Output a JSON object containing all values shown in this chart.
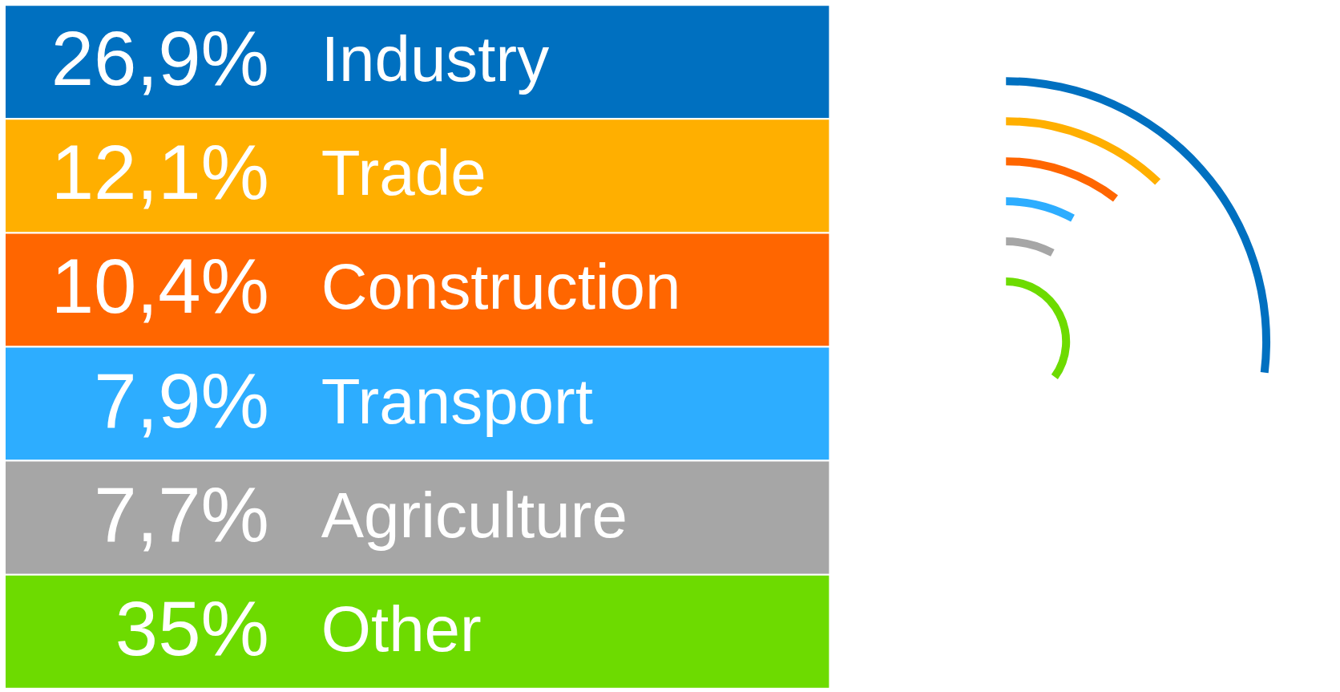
{
  "chart_data": {
    "type": "other",
    "categories": [
      "Industry",
      "Trade",
      "Construction",
      "Transport",
      "Agriculture",
      "Other"
    ],
    "values": [
      26.9,
      12.1,
      10.4,
      7.9,
      7.7,
      35
    ],
    "value_labels": [
      "26,9%",
      "12,1%",
      "10,4%",
      "7,9%",
      "7,7%",
      "35%"
    ],
    "colors": [
      "#0070c0",
      "#ffaf00",
      "#ff6600",
      "#2dadff",
      "#a6a6a6",
      "#6ddb00"
    ]
  }
}
